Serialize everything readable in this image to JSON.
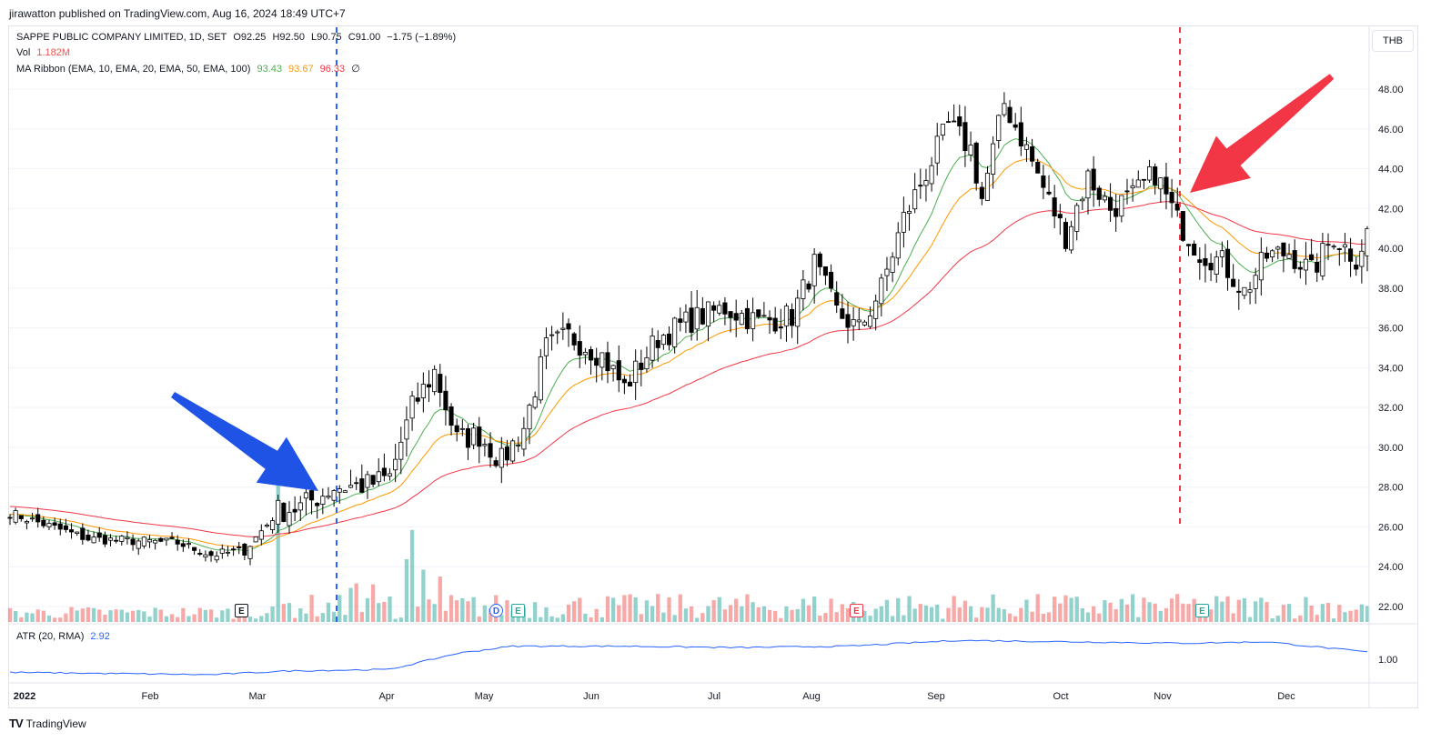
{
  "publisher": "jirawatton published on TradingView.com, Aug 16, 2024 18:49 UTC+7",
  "brand": "TradingView",
  "currency": "THB",
  "legend": {
    "title": "SAPPE PUBLIC COMPANY LIMITED, 1D, SET",
    "open": "O92.25",
    "high": "H92.50",
    "low": "L90.75",
    "close": "C91.00",
    "change": "−1.75 (−1.89%)",
    "vol_label": "Vol",
    "vol_value": "1.182M",
    "ma_label": "MA Ribbon (EMA, 10, EMA, 20, EMA, 50, EMA, 100)",
    "ma_v1": "93.43",
    "ma_v2": "93.67",
    "ma_v3": "96.33",
    "ma_v4": "∅",
    "atr_label": "ATR (20, RMA)",
    "atr_value": "2.92"
  },
  "colors": {
    "up_volume": "#26a69a",
    "down_volume": "#ef5350",
    "ema10": "#4caf50",
    "ema20": "#ff9800",
    "ema50": "#f23645",
    "atr": "#2962ff",
    "blue_marker": "#2962ff",
    "red_marker": "#f23645",
    "blue_arrow": "#1e53e5",
    "red_arrow": "#f23645"
  },
  "chart_data": {
    "type": "candlestick",
    "y_axis_ticks": [
      "48.00",
      "46.00",
      "44.00",
      "42.00",
      "40.00",
      "38.00",
      "36.00",
      "34.00",
      "32.00",
      "30.00",
      "28.00",
      "26.00",
      "24.00",
      "22.00"
    ],
    "ylim": [
      21.4,
      49.2
    ],
    "x_axis_ticks": [
      "2022",
      "Feb",
      "Mar",
      "Apr",
      "May",
      "Jun",
      "Jul",
      "Aug",
      "Sep",
      "Oct",
      "Nov",
      "Dec"
    ],
    "atr_axis_ticks": [
      "1.00"
    ],
    "events": [
      {
        "label": "E",
        "type": "earnings",
        "date": "Feb 28"
      },
      {
        "label": "D",
        "type": "dividend",
        "date": "May 3"
      },
      {
        "label": "E",
        "type": "earnings",
        "date": "May 9"
      },
      {
        "label": "E",
        "type": "earnings",
        "date": "Aug 11"
      },
      {
        "label": "E",
        "type": "earnings",
        "date": "Nov 10"
      }
    ],
    "markers": [
      {
        "type": "vertical-line",
        "color": "blue",
        "date": "Mar 17"
      },
      {
        "type": "vertical-line",
        "color": "red",
        "date": "Nov 4"
      }
    ],
    "anchors": [
      {
        "i": 0,
        "close": 26.7
      },
      {
        "i": 14,
        "close": 25.4
      },
      {
        "i": 30,
        "close": 25.2
      },
      {
        "i": 36,
        "close": 24.6
      },
      {
        "i": 42,
        "close": 24.8
      },
      {
        "i": 48,
        "close": 26.8
      },
      {
        "i": 52,
        "close": 27.0
      },
      {
        "i": 58,
        "close": 28.0
      },
      {
        "i": 64,
        "close": 28.1
      },
      {
        "i": 68,
        "close": 28.5
      },
      {
        "i": 72,
        "close": 32.0
      },
      {
        "i": 76,
        "close": 33.8
      },
      {
        "i": 80,
        "close": 30.4
      },
      {
        "i": 84,
        "close": 30.6
      },
      {
        "i": 88,
        "close": 29.3
      },
      {
        "i": 92,
        "close": 31.0
      },
      {
        "i": 96,
        "close": 35.0
      },
      {
        "i": 100,
        "close": 35.6
      },
      {
        "i": 106,
        "close": 34.6
      },
      {
        "i": 110,
        "close": 33.0
      },
      {
        "i": 116,
        "close": 35.5
      },
      {
        "i": 122,
        "close": 36.4
      },
      {
        "i": 128,
        "close": 37.0
      },
      {
        "i": 134,
        "close": 36.3
      },
      {
        "i": 140,
        "close": 36.6
      },
      {
        "i": 144,
        "close": 39.2
      },
      {
        "i": 148,
        "close": 36.8
      },
      {
        "i": 152,
        "close": 35.9
      },
      {
        "i": 156,
        "close": 38.0
      },
      {
        "i": 160,
        "close": 41.5
      },
      {
        "i": 164,
        "close": 43.8
      },
      {
        "i": 168,
        "close": 46.2
      },
      {
        "i": 172,
        "close": 45.0
      },
      {
        "i": 174,
        "close": 42.5
      },
      {
        "i": 178,
        "close": 47.3
      },
      {
        "i": 182,
        "close": 45.0
      },
      {
        "i": 186,
        "close": 42.4
      },
      {
        "i": 189,
        "close": 40.6
      },
      {
        "i": 193,
        "close": 43.6
      },
      {
        "i": 197,
        "close": 42.0
      },
      {
        "i": 201,
        "close": 42.6
      },
      {
        "i": 205,
        "close": 43.8
      },
      {
        "i": 209,
        "close": 41.4
      },
      {
        "i": 213,
        "close": 39.8
      },
      {
        "i": 217,
        "close": 39.3
      },
      {
        "i": 221,
        "close": 37.8
      },
      {
        "i": 225,
        "close": 39.6
      },
      {
        "i": 229,
        "close": 39.8
      },
      {
        "i": 233,
        "close": 38.8
      },
      {
        "i": 237,
        "close": 40.6
      },
      {
        "i": 241,
        "close": 39.5
      },
      {
        "i": 243,
        "close": 40.8
      }
    ],
    "volume_spikes": [
      {
        "i": 48,
        "vol": 7.0
      },
      {
        "i": 71,
        "vol": 3.0
      },
      {
        "i": 72,
        "vol": 4.4
      }
    ],
    "atr_anchors": [
      {
        "i": 0,
        "v": 0.55
      },
      {
        "i": 36,
        "v": 0.47
      },
      {
        "i": 50,
        "v": 0.6
      },
      {
        "i": 68,
        "v": 0.65
      },
      {
        "i": 80,
        "v": 1.2
      },
      {
        "i": 90,
        "v": 1.45
      },
      {
        "i": 110,
        "v": 1.45
      },
      {
        "i": 130,
        "v": 1.4
      },
      {
        "i": 150,
        "v": 1.45
      },
      {
        "i": 170,
        "v": 1.65
      },
      {
        "i": 190,
        "v": 1.6
      },
      {
        "i": 210,
        "v": 1.55
      },
      {
        "i": 225,
        "v": 1.6
      },
      {
        "i": 243,
        "v": 1.25
      }
    ]
  }
}
